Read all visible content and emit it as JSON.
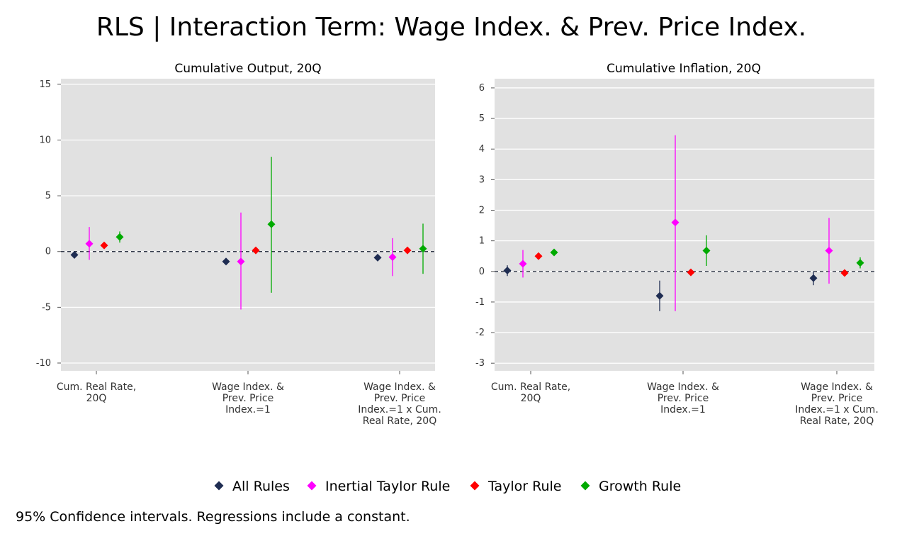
{
  "title": "RLS | Interaction Term: Wage Index. & Prev. Price Index.",
  "note": "95% Confidence intervals. Regressions include a constant.",
  "legend": [
    {
      "label": "All Rules",
      "color": "#1f2d52"
    },
    {
      "label": "Inertial Taylor Rule",
      "color": "#ff00ff"
    },
    {
      "label": "Taylor Rule",
      "color": "#ff0000"
    },
    {
      "label": "Growth Rule",
      "color": "#00aa00"
    }
  ],
  "chart_data": [
    {
      "type": "scatter",
      "title": "Cumulative Output, 20Q",
      "categories": [
        [
          "Cum. Real Rate,",
          "20Q"
        ],
        [
          "Wage Index. &",
          "Prev. Price",
          "Index.=1"
        ],
        [
          "Wage Index. &",
          "Prev. Price",
          "Index.=1 x Cum.",
          "Real Rate, 20Q"
        ]
      ],
      "ylim": [
        -10.7,
        15.5
      ],
      "yticks": [
        -10,
        -5,
        0,
        5,
        10,
        15
      ],
      "ytick_labels": [
        "-10",
        "-5",
        "0",
        "5",
        "10",
        "15"
      ],
      "reference_line": 0,
      "series": [
        {
          "name": "All Rules",
          "color": "#1f2d52",
          "points": [
            {
              "est": -0.3,
              "lo": -0.55,
              "hi": -0.05
            },
            {
              "est": -0.9,
              "lo": -1.2,
              "hi": -0.6
            },
            {
              "est": -0.55,
              "lo": -0.8,
              "hi": -0.3
            }
          ]
        },
        {
          "name": "Inertial Taylor Rule",
          "color": "#ff00ff",
          "points": [
            {
              "est": 0.7,
              "lo": -0.75,
              "hi": 2.2
            },
            {
              "est": -0.9,
              "lo": -5.2,
              "hi": 3.5
            },
            {
              "est": -0.5,
              "lo": -2.2,
              "hi": 1.2
            }
          ]
        },
        {
          "name": "Taylor Rule",
          "color": "#ff0000",
          "points": [
            {
              "est": 0.55,
              "lo": 0.35,
              "hi": 0.75
            },
            {
              "est": 0.1,
              "lo": -0.1,
              "hi": 0.3
            },
            {
              "est": 0.1,
              "lo": -0.05,
              "hi": 0.25
            }
          ]
        },
        {
          "name": "Growth Rule",
          "color": "#00aa00",
          "points": [
            {
              "est": 1.3,
              "lo": 0.8,
              "hi": 1.8
            },
            {
              "est": 2.45,
              "lo": -3.7,
              "hi": 8.5
            },
            {
              "est": 0.25,
              "lo": -2.0,
              "hi": 2.5
            }
          ]
        }
      ]
    },
    {
      "type": "scatter",
      "title": "Cumulative Inflation, 20Q",
      "categories": [
        [
          "Cum. Real Rate,",
          "20Q"
        ],
        [
          "Wage Index. &",
          "Prev. Price",
          "Index.=1"
        ],
        [
          "Wage Index. &",
          "Prev. Price",
          "Index.=1 x Cum.",
          "Real Rate, 20Q"
        ]
      ],
      "ylim": [
        -3.25,
        6.3
      ],
      "yticks": [
        -3,
        -2,
        -1,
        0,
        1,
        2,
        3,
        4,
        5,
        6
      ],
      "ytick_labels": [
        "-3",
        "-2",
        "-1",
        "0",
        "1",
        "2",
        "3",
        "4",
        "5",
        "6"
      ],
      "reference_line": 0,
      "series": [
        {
          "name": "All Rules",
          "color": "#1f2d52",
          "points": [
            {
              "est": 0.03,
              "lo": -0.15,
              "hi": 0.2
            },
            {
              "est": -0.8,
              "lo": -1.3,
              "hi": -0.3
            },
            {
              "est": -0.22,
              "lo": -0.45,
              "hi": 0.0
            }
          ]
        },
        {
          "name": "Inertial Taylor Rule",
          "color": "#ff00ff",
          "points": [
            {
              "est": 0.25,
              "lo": -0.2,
              "hi": 0.7
            },
            {
              "est": 1.6,
              "lo": -1.3,
              "hi": 4.45
            },
            {
              "est": 0.68,
              "lo": -0.4,
              "hi": 1.75
            }
          ]
        },
        {
          "name": "Taylor Rule",
          "color": "#ff0000",
          "points": [
            {
              "est": 0.5,
              "lo": 0.4,
              "hi": 0.6
            },
            {
              "est": -0.03,
              "lo": -0.12,
              "hi": 0.06
            },
            {
              "est": -0.05,
              "lo": -0.12,
              "hi": 0.02
            }
          ]
        },
        {
          "name": "Growth Rule",
          "color": "#00aa00",
          "points": [
            {
              "est": 0.62,
              "lo": 0.52,
              "hi": 0.72
            },
            {
              "est": 0.68,
              "lo": 0.18,
              "hi": 1.18
            },
            {
              "est": 0.28,
              "lo": 0.1,
              "hi": 0.46
            }
          ]
        }
      ]
    }
  ]
}
